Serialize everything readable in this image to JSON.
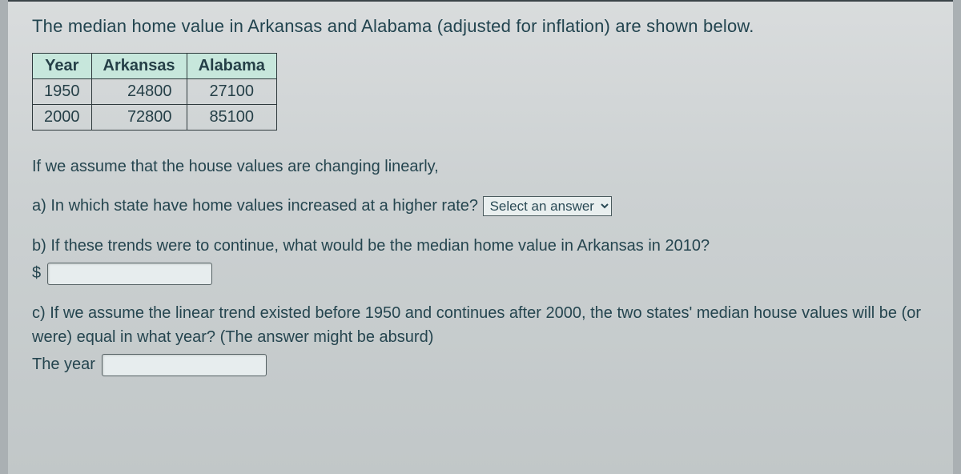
{
  "intro": "The median home value in Arkansas and Alabama (adjusted for inflation) are shown below.",
  "table": {
    "columns": [
      "Year",
      "Arkansas",
      "Alabama"
    ],
    "rows": [
      [
        "1950",
        "24800",
        "27100"
      ],
      [
        "2000",
        "72800",
        "85100"
      ]
    ],
    "header_bg": "#c7e7dc",
    "border_color": "#2f3a3d"
  },
  "assume": "If we assume that the house values are changing linearly,",
  "qa": {
    "a": "a) In which state have home values increased at a higher rate?",
    "a_select_placeholder": "Select an answer",
    "b": "b) If these trends were to continue, what would be the median home value in Arkansas in 2010?",
    "b_prefix": "$",
    "c": "c) If we assume the linear trend existed before 1950 and continues after 2000, the two states' median house values will be (or were) equal in what year? (The answer might be absurd)",
    "c_prefix": "The year"
  }
}
